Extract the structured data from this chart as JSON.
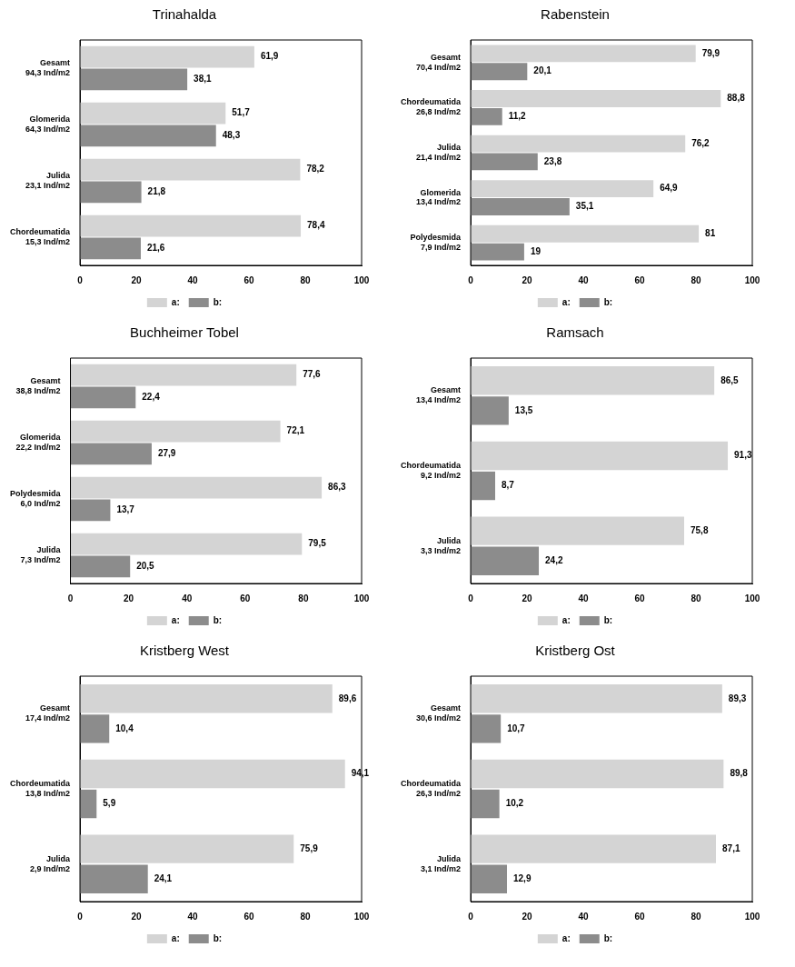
{
  "chart_data": [
    {
      "type": "bar",
      "orientation": "horizontal",
      "title": "Trinahalda",
      "categories": [
        "Gesamt\n94,3 Ind/m2",
        "Glomerida\n64,3 Ind/m2",
        "Julida\n23,1 Ind/m2",
        "Chordeumatida\n15,3 Ind/m2"
      ],
      "series": [
        {
          "name": "a:",
          "color": "#d4d4d4",
          "values": [
            61.9,
            51.7,
            78.2,
            78.4
          ],
          "value_labels": [
            "61,9",
            "51,7",
            "78,2",
            "78,4"
          ]
        },
        {
          "name": "b:",
          "color": "#8c8c8c",
          "values": [
            38.1,
            48.3,
            21.8,
            21.6
          ],
          "value_labels": [
            "38,1",
            "48,3",
            "21,8",
            "21,6"
          ]
        }
      ],
      "xlim": [
        0,
        100
      ],
      "xticks": [
        0,
        20,
        40,
        60,
        80,
        100
      ],
      "grid": false,
      "legend": "bottom"
    },
    {
      "type": "bar",
      "orientation": "horizontal",
      "title": "Rabenstein",
      "categories": [
        "Gesamt\n70,4 Ind/m2",
        "Chordeumatida\n26,8 Ind/m2",
        "Julida\n21,4 Ind/m2",
        "Glomerida\n13,4 Ind/m2",
        "Polydesmida\n7,9 Ind/m2"
      ],
      "series": [
        {
          "name": "a:",
          "color": "#d4d4d4",
          "values": [
            79.9,
            88.8,
            76.2,
            64.9,
            81
          ],
          "value_labels": [
            "79,9",
            "88,8",
            "76,2",
            "64,9",
            "81"
          ]
        },
        {
          "name": "b:",
          "color": "#8c8c8c",
          "values": [
            20.1,
            11.2,
            23.8,
            35.1,
            19
          ],
          "value_labels": [
            "20,1",
            "11,2",
            "23,8",
            "35,1",
            "19"
          ]
        }
      ],
      "xlim": [
        0,
        100
      ],
      "xticks": [
        0,
        20,
        40,
        60,
        80,
        100
      ],
      "grid": false,
      "legend": "bottom"
    },
    {
      "type": "bar",
      "orientation": "horizontal",
      "title": "Buchheimer Tobel",
      "categories": [
        "Gesamt\n38,8 Ind/m2",
        "Glomerida\n22,2 Ind/m2",
        "Polydesmida\n6,0 Ind/m2",
        "Julida\n7,3 Ind/m2"
      ],
      "series": [
        {
          "name": "a:",
          "color": "#d4d4d4",
          "values": [
            77.6,
            72.1,
            86.3,
            79.5
          ],
          "value_labels": [
            "77,6",
            "72,1",
            "86,3",
            "79,5"
          ]
        },
        {
          "name": "b:",
          "color": "#8c8c8c",
          "values": [
            22.4,
            27.9,
            13.7,
            20.5
          ],
          "value_labels": [
            "22,4",
            "27,9",
            "13,7",
            "20,5"
          ]
        }
      ],
      "xlim": [
        0,
        100
      ],
      "xticks": [
        0,
        20,
        40,
        60,
        80,
        100
      ],
      "grid": false,
      "legend": "bottom"
    },
    {
      "type": "bar",
      "orientation": "horizontal",
      "title": "Ramsach",
      "categories": [
        "Gesamt\n13,4 Ind/m2",
        "Chordeumatida\n9,2 Ind/m2",
        "Julida\n3,3 Ind/m2"
      ],
      "series": [
        {
          "name": "a:",
          "color": "#d4d4d4",
          "values": [
            86.5,
            91.3,
            75.8
          ],
          "value_labels": [
            "86,5",
            "91,3",
            "75,8"
          ]
        },
        {
          "name": "b:",
          "color": "#8c8c8c",
          "values": [
            13.5,
            8.7,
            24.2
          ],
          "value_labels": [
            "13,5",
            "8,7",
            "24,2"
          ]
        }
      ],
      "xlim": [
        0,
        100
      ],
      "xticks": [
        0,
        20,
        40,
        60,
        80,
        100
      ],
      "grid": false,
      "legend": "bottom"
    },
    {
      "type": "bar",
      "orientation": "horizontal",
      "title": "Kristberg West",
      "categories": [
        "Gesamt\n17,4 Ind/m2",
        "Chordeumatida\n13,8 Ind/m2",
        "Julida\n2,9 Ind/m2"
      ],
      "series": [
        {
          "name": "a:",
          "color": "#d4d4d4",
          "values": [
            89.6,
            94.1,
            75.9
          ],
          "value_labels": [
            "89,6",
            "94,1",
            "75,9"
          ]
        },
        {
          "name": "b:",
          "color": "#8c8c8c",
          "values": [
            10.4,
            5.9,
            24.1
          ],
          "value_labels": [
            "10,4",
            "5,9",
            "24,1"
          ]
        }
      ],
      "xlim": [
        0,
        100
      ],
      "xticks": [
        0,
        20,
        40,
        60,
        80,
        100
      ],
      "grid": false,
      "legend": "bottom"
    },
    {
      "type": "bar",
      "orientation": "horizontal",
      "title": "Kristberg Ost",
      "categories": [
        "Gesamt\n30,6 Ind/m2",
        "Chordeumatida\n26,3 Ind/m2",
        "Julida\n3,1 Ind/m2"
      ],
      "series": [
        {
          "name": "a:",
          "color": "#d4d4d4",
          "values": [
            89.3,
            89.8,
            87.1
          ],
          "value_labels": [
            "89,3",
            "89,8",
            "87,1"
          ]
        },
        {
          "name": "b:",
          "color": "#8c8c8c",
          "values": [
            10.7,
            10.2,
            12.9
          ],
          "value_labels": [
            "10,7",
            "10,2",
            "12,9"
          ]
        }
      ],
      "xlim": [
        0,
        100
      ],
      "xticks": [
        0,
        20,
        40,
        60,
        80,
        100
      ],
      "grid": false,
      "legend": "bottom"
    }
  ]
}
